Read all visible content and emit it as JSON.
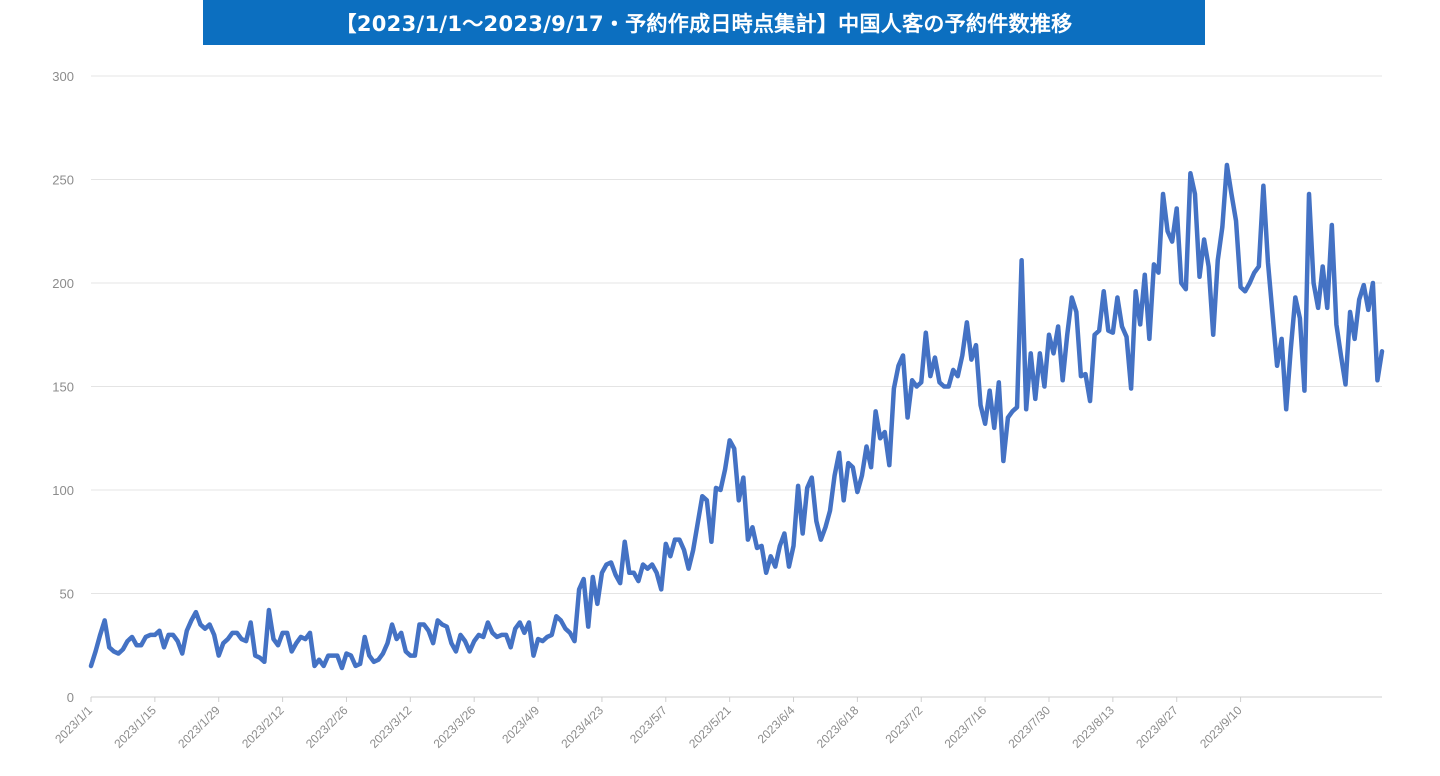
{
  "chart_data": {
    "type": "line",
    "title": "【2023/1/1～2023/9/17・予約作成日時点集計】中国人客の予約件数推移",
    "xlabel": "",
    "ylabel": "",
    "ylim": [
      0,
      300
    ],
    "yticks": [
      0,
      50,
      100,
      150,
      200,
      250,
      300
    ],
    "grid": true,
    "legend": "none",
    "line_color": "#4472c4",
    "x_start": "2023/1/1",
    "x_end": "2023/9/17",
    "x_tick_labels": [
      "2023/1/1",
      "2023/1/15",
      "2023/1/29",
      "2023/2/12",
      "2023/2/26",
      "2023/3/12",
      "2023/3/26",
      "2023/4/9",
      "2023/4/23",
      "2023/5/7",
      "2023/5/21",
      "2023/6/4",
      "2023/6/18",
      "2023/7/2",
      "2023/7/16",
      "2023/7/30",
      "2023/8/13",
      "2023/8/27",
      "2023/9/10"
    ],
    "series": [
      {
        "name": "中国人客の予約件数",
        "values": [
          15,
          22,
          30,
          37,
          24,
          22,
          21,
          23,
          27,
          29,
          25,
          25,
          29,
          30,
          30,
          32,
          24,
          30,
          30,
          27,
          21,
          32,
          37,
          41,
          35,
          33,
          35,
          30,
          20,
          26,
          28,
          31,
          31,
          28,
          27,
          36,
          20,
          19,
          17,
          42,
          28,
          25,
          31,
          31,
          22,
          26,
          29,
          28,
          31,
          15,
          18,
          15,
          20,
          20,
          20,
          14,
          21,
          20,
          15,
          16,
          29,
          20,
          17,
          18,
          21,
          26,
          35,
          28,
          31,
          22,
          20,
          20,
          35,
          35,
          32,
          26,
          37,
          35,
          34,
          26,
          22,
          30,
          27,
          22,
          27,
          30,
          29,
          36,
          31,
          29,
          30,
          30,
          24,
          33,
          36,
          31,
          36,
          20,
          28,
          27,
          29,
          30,
          39,
          37,
          33,
          31,
          27,
          52,
          57,
          34,
          58,
          45,
          60,
          64,
          65,
          59,
          55,
          75,
          60,
          60,
          56,
          64,
          62,
          64,
          60,
          52,
          74,
          68,
          76,
          76,
          71,
          62,
          71,
          84,
          97,
          95,
          75,
          101,
          100,
          110,
          124,
          120,
          95,
          106,
          76,
          82,
          72,
          73,
          60,
          68,
          63,
          73,
          79,
          63,
          73,
          102,
          79,
          101,
          106,
          85,
          76,
          82,
          90,
          107,
          118,
          95,
          113,
          111,
          99,
          107,
          121,
          111,
          138,
          125,
          128,
          112,
          149,
          160,
          165,
          135,
          153,
          150,
          152,
          176,
          155,
          164,
          152,
          150,
          150,
          158,
          155,
          165,
          181,
          163,
          170,
          141,
          132,
          148,
          130,
          152,
          114,
          135,
          138,
          140,
          211,
          139,
          166,
          144,
          166,
          150,
          175,
          166,
          179,
          153,
          175,
          193,
          186,
          155,
          156,
          143,
          175,
          177,
          196,
          177,
          176,
          193,
          179,
          174,
          149,
          196,
          180,
          204,
          173,
          209,
          205,
          243,
          225,
          220,
          236,
          200,
          197,
          253,
          243,
          203,
          221,
          208,
          175,
          211,
          227,
          257,
          243,
          230,
          198,
          196,
          200,
          205,
          208,
          247,
          210,
          185,
          160,
          173,
          139,
          168,
          193,
          183,
          148,
          243,
          200,
          188,
          208,
          188,
          228,
          180,
          165,
          151,
          186,
          173,
          192,
          199,
          187,
          200,
          153,
          167
        ]
      }
    ]
  }
}
